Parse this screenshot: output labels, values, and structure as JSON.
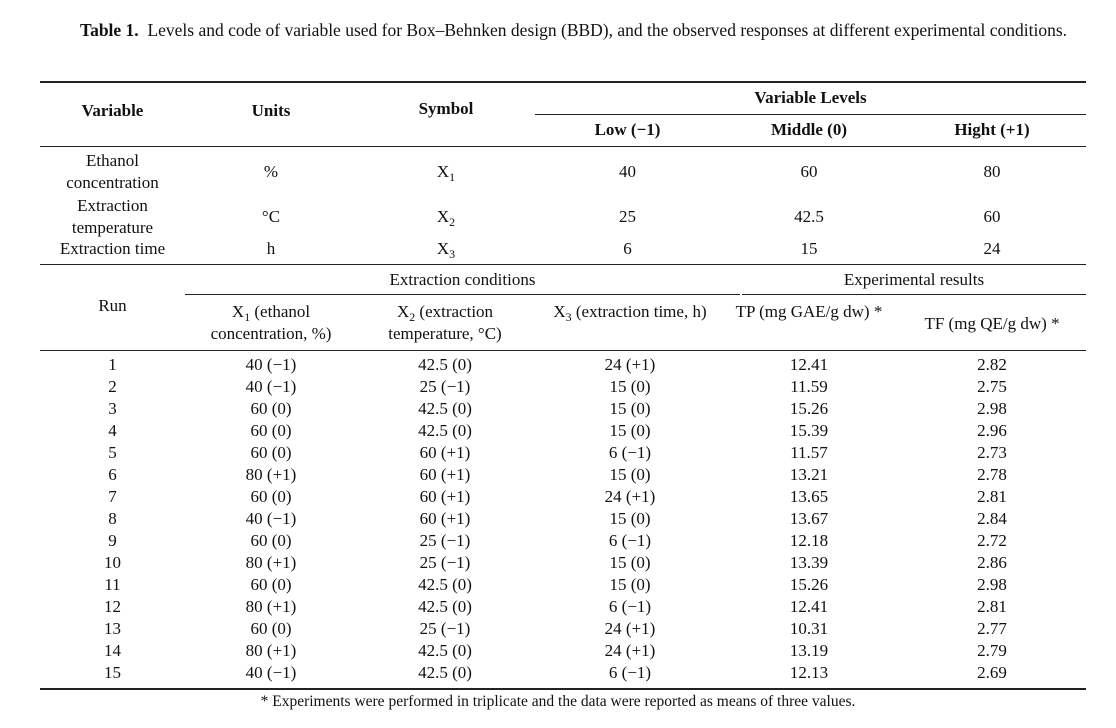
{
  "caption": {
    "label": "Table 1.",
    "text": "Levels and code of variable used for Box–Behnken design (BBD), and the observed responses at different experimental conditions."
  },
  "levels_table": {
    "headers": {
      "variable": "Variable",
      "units": "Units",
      "symbol": "Symbol",
      "levels": "Variable Levels",
      "low": "Low (−1)",
      "middle": "Middle (0)",
      "high": "Hight (+1)"
    },
    "rows": [
      {
        "variable": "Ethanol concentration",
        "units": "%",
        "symbol_base": "X",
        "symbol_sub": "1",
        "low": "40",
        "middle": "60",
        "high": "80"
      },
      {
        "variable": "Extraction temperature",
        "units": "°C",
        "symbol_base": "X",
        "symbol_sub": "2",
        "low": "25",
        "middle": "42.5",
        "high": "60"
      },
      {
        "variable": "Extraction time",
        "units": "h",
        "symbol_base": "X",
        "symbol_sub": "3",
        "low": "6",
        "middle": "15",
        "high": "24"
      }
    ]
  },
  "runs_table": {
    "headers": {
      "run": "Run",
      "conditions": "Extraction conditions",
      "results": "Experimental results",
      "x1_base": "X",
      "x1_sub": "1",
      "x1_text": " (ethanol concentration, %)",
      "x2_base": "X",
      "x2_sub": "2",
      "x2_text": " (extraction temperature, °C)",
      "x3_base": "X",
      "x3_sub": "3",
      "x3_text": " (extraction time, h)",
      "tp": "TP (mg GAE/g dw) *",
      "tf": "TF (mg QE/g dw) *"
    },
    "rows": [
      [
        "1",
        "40 (−1)",
        "42.5 (0)",
        "24 (+1)",
        "12.41",
        "2.82"
      ],
      [
        "2",
        "40 (−1)",
        "25 (−1)",
        "15 (0)",
        "11.59",
        "2.75"
      ],
      [
        "3",
        "60 (0)",
        "42.5 (0)",
        "15 (0)",
        "15.26",
        "2.98"
      ],
      [
        "4",
        "60 (0)",
        "42.5 (0)",
        "15 (0)",
        "15.39",
        "2.96"
      ],
      [
        "5",
        "60 (0)",
        "60 (+1)",
        "6 (−1)",
        "11.57",
        "2.73"
      ],
      [
        "6",
        "80 (+1)",
        "60 (+1)",
        "15 (0)",
        "13.21",
        "2.78"
      ],
      [
        "7",
        "60 (0)",
        "60 (+1)",
        "24 (+1)",
        "13.65",
        "2.81"
      ],
      [
        "8",
        "40 (−1)",
        "60 (+1)",
        "15 (0)",
        "13.67",
        "2.84"
      ],
      [
        "9",
        "60 (0)",
        "25 (−1)",
        "6 (−1)",
        "12.18",
        "2.72"
      ],
      [
        "10",
        "80 (+1)",
        "25 (−1)",
        "15 (0)",
        "13.39",
        "2.86"
      ],
      [
        "11",
        "60 (0)",
        "42.5 (0)",
        "15 (0)",
        "15.26",
        "2.98"
      ],
      [
        "12",
        "80 (+1)",
        "42.5 (0)",
        "6 (−1)",
        "12.41",
        "2.81"
      ],
      [
        "13",
        "60 (0)",
        "25 (−1)",
        "24 (+1)",
        "10.31",
        "2.77"
      ],
      [
        "14",
        "80 (+1)",
        "42.5 (0)",
        "24 (+1)",
        "13.19",
        "2.79"
      ],
      [
        "15",
        "40 (−1)",
        "42.5 (0)",
        "6 (−1)",
        "12.13",
        "2.69"
      ]
    ]
  },
  "footnote": "* Experiments were performed in triplicate and the data were reported as means of three values."
}
